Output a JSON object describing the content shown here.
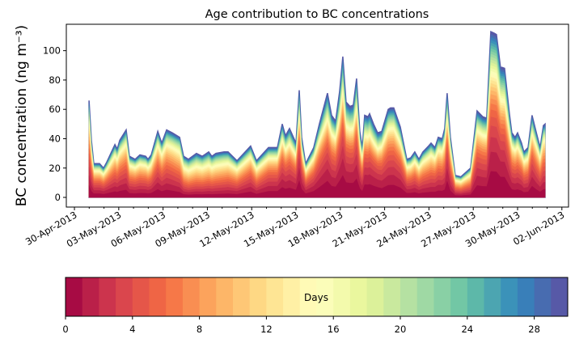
{
  "chart_data": {
    "type": "area",
    "subtype": "stacked",
    "title": "Age contribution to BC concentrations",
    "ylabel": "BC concentration (ng m⁻³)",
    "xlabel": "",
    "ylim": [
      -6.6,
      118
    ],
    "yticks": [
      0,
      20,
      40,
      60,
      80,
      100
    ],
    "x_units": "days since 30-Apr-2013 00:00",
    "xlim": [
      -0.55,
      33.45
    ],
    "xticks": [
      0,
      3,
      6,
      9,
      12,
      15,
      18,
      21,
      24,
      27,
      30,
      33
    ],
    "xtick_labels": [
      "30-Apr-2013",
      "03-May-2013",
      "06-May-2013",
      "09-May-2013",
      "12-May-2013",
      "15-May-2013",
      "18-May-2013",
      "21-May-2013",
      "24-May-2013",
      "27-May-2013",
      "30-May-2013",
      "02-Jun-2013"
    ],
    "x": [
      0.99,
      1.15,
      1.31,
      1.7,
      1.97,
      2.19,
      2.74,
      2.9,
      3.07,
      3.5,
      3.72,
      4.11,
      4.43,
      4.82,
      4.98,
      5.2,
      5.64,
      5.91,
      6.24,
      6.62,
      7.12,
      7.39,
      7.72,
      8.26,
      8.65,
      9.09,
      9.3,
      9.58,
      10.13,
      10.4,
      11.0,
      11.93,
      12.32,
      13.14,
      13.74,
      14.07,
      14.29,
      14.56,
      15.0,
      15.22,
      15.38,
      15.65,
      16.2,
      16.58,
      17.13,
      17.41,
      17.68,
      17.95,
      18.17,
      18.39,
      18.66,
      18.88,
      19.1,
      19.32,
      19.49,
      19.65,
      19.87,
      19.98,
      20.25,
      20.53,
      20.8,
      21.24,
      21.4,
      21.62,
      22.06,
      22.5,
      22.77,
      23.04,
      23.32,
      23.59,
      23.97,
      24.14,
      24.41,
      24.63,
      24.9,
      25.07,
      25.23,
      25.45,
      25.78,
      26.16,
      26.82,
      27.26,
      27.64,
      27.91,
      28.19,
      28.41,
      28.57,
      28.84,
      29.12,
      29.45,
      29.61,
      29.83,
      30.0,
      30.27,
      30.43,
      30.71,
      30.98,
      31.25,
      31.53,
      31.75,
      31.86
    ],
    "total": [
      66,
      39,
      23,
      23,
      20,
      24,
      36,
      33,
      39,
      46,
      28,
      26,
      29,
      28,
      26,
      29,
      45,
      37,
      46,
      44,
      41,
      28,
      26,
      30,
      28,
      31,
      28,
      30,
      31,
      31,
      25,
      35,
      25,
      34,
      34,
      50,
      42,
      47,
      37,
      73,
      41,
      23,
      34,
      50,
      71,
      56,
      52,
      72,
      96,
      65,
      62,
      63,
      81,
      45,
      34,
      56,
      55,
      57,
      50,
      44,
      45,
      60,
      61,
      61,
      48,
      26,
      27,
      31,
      26,
      31,
      35,
      37,
      34,
      41,
      40,
      47,
      71,
      41,
      15,
      14,
      20,
      59,
      55,
      54,
      113,
      112,
      111,
      89,
      88,
      57,
      44,
      41,
      44,
      37,
      31,
      34,
      56,
      45,
      34,
      49,
      50
    ],
    "age_scale_days": [
      5,
      6,
      6,
      6,
      6,
      6,
      6,
      6,
      6,
      6,
      7,
      7,
      7,
      7,
      7,
      7,
      5,
      6,
      6,
      7,
      9,
      12,
      14,
      14,
      13,
      13,
      12,
      12,
      11,
      10,
      9,
      6,
      8,
      5,
      5,
      4,
      4,
      4,
      4,
      3,
      4,
      6,
      5,
      4,
      3,
      4,
      4,
      3,
      3,
      3,
      3,
      3,
      3,
      4,
      5,
      3,
      3,
      3,
      3,
      3,
      4,
      4,
      4,
      4,
      4,
      6,
      6,
      6,
      7,
      7,
      7,
      7,
      6,
      6,
      6,
      6,
      3,
      6,
      8,
      9,
      8,
      4,
      4,
      4,
      3,
      3,
      3,
      3,
      3,
      4,
      5,
      5,
      5,
      5,
      6,
      6,
      4,
      5,
      6,
      6,
      6
    ],
    "n_age_bins": 30,
    "colorbar": {
      "label": "Days",
      "range": [
        0,
        30
      ],
      "ticks": [
        0,
        4,
        8,
        12,
        16,
        20,
        24,
        28
      ],
      "colormap": "Spectral",
      "colormap_anchors": [
        "#9e0142",
        "#d53e4f",
        "#f46d43",
        "#fdae61",
        "#fee08b",
        "#ffffbf",
        "#e6f598",
        "#abdda4",
        "#66c2a5",
        "#3288bd",
        "#5e4fa2"
      ]
    }
  }
}
